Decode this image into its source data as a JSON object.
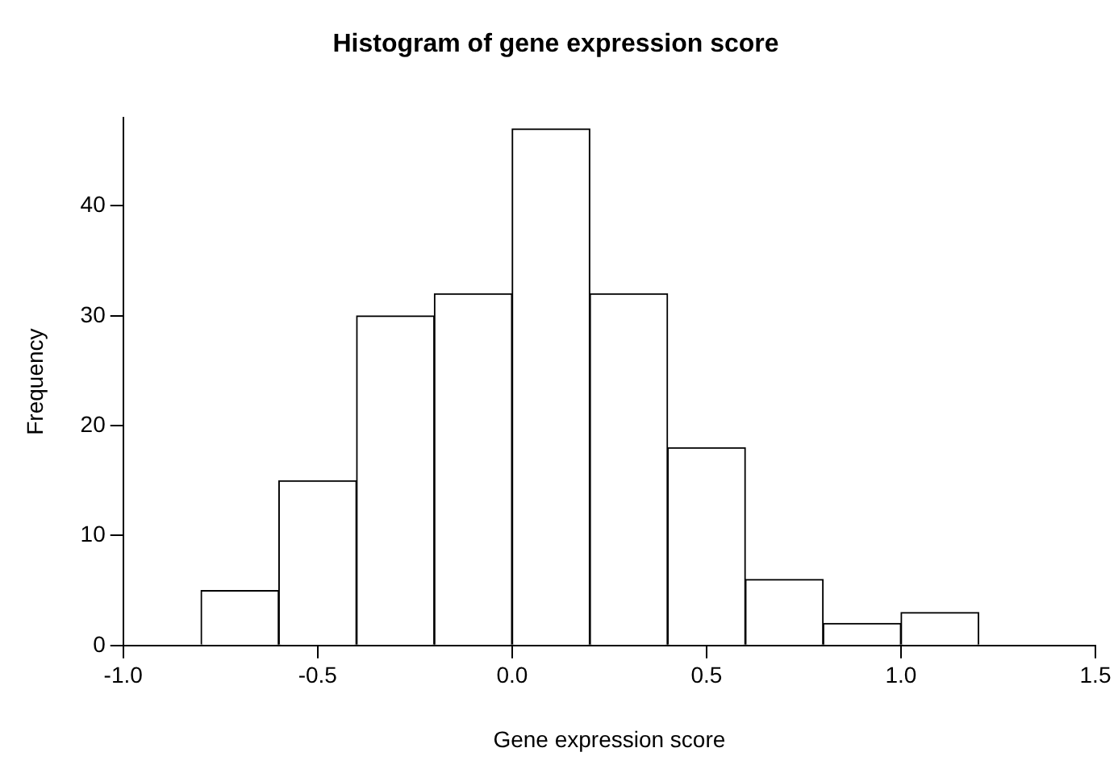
{
  "chart_data": {
    "type": "histogram",
    "title": "Histogram of gene expression score",
    "xlabel": "Gene expression score",
    "ylabel": "Frequency",
    "bins": [
      -0.8,
      -0.6,
      -0.4,
      -0.2,
      0,
      0.2,
      0.4,
      0.6,
      0.8,
      1.0,
      1.2
    ],
    "values": [
      5,
      15,
      30,
      32,
      47,
      32,
      18,
      6,
      2,
      3
    ],
    "color": "#ffffff",
    "xlim": [
      -1.0,
      1.5
    ],
    "xticks": [
      {
        "value": -1.0,
        "label": "-1.0"
      },
      -0.5,
      {
        "value": 0,
        "label": "0.0"
      },
      0.5,
      {
        "value": 1.0,
        "label": "1.0"
      },
      1.5
    ],
    "ylim": [
      0,
      48
    ],
    "yticks": [
      0,
      10,
      20,
      30,
      40
    ],
    "grid": false,
    "legend": false
  }
}
